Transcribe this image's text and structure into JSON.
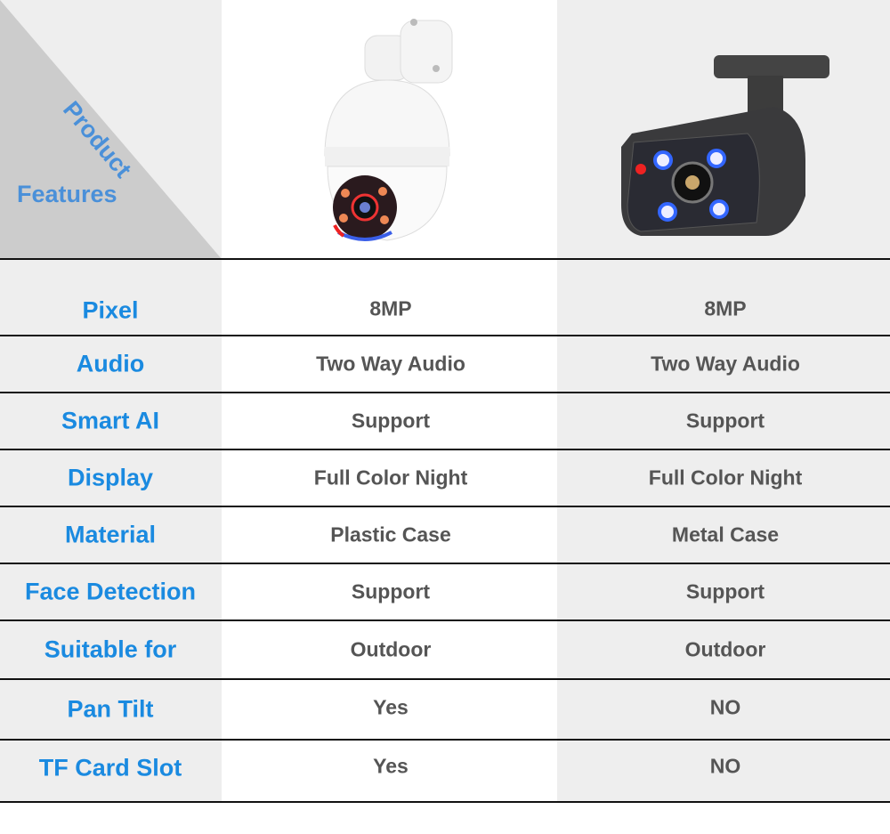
{
  "header": {
    "product_label": "Product",
    "features_label": "Features"
  },
  "products": [
    {
      "name": "pan-tilt-dome-camera",
      "color": "#ffffff"
    },
    {
      "name": "bullet-camera",
      "color": "#3a3a3c"
    }
  ],
  "colors": {
    "label_blue": "#1a8ae0",
    "header_blue": "#4a90d9",
    "value_gray": "#555555",
    "panel_gray": "#eeeeee"
  },
  "rows": [
    {
      "feature": "Pixel",
      "product1": "8MP",
      "product2": "8MP"
    },
    {
      "feature": "Audio",
      "product1": "Two Way Audio",
      "product2": "Two Way Audio"
    },
    {
      "feature": "Smart AI",
      "product1": "Support",
      "product2": "Support"
    },
    {
      "feature": "Display",
      "product1": "Full Color Night",
      "product2": "Full Color Night"
    },
    {
      "feature": "Material",
      "product1": "Plastic Case",
      "product2": "Metal Case"
    },
    {
      "feature": "Face Detection",
      "product1": "Support",
      "product2": "Support"
    },
    {
      "feature": "Suitable for",
      "product1": "Outdoor",
      "product2": "Outdoor"
    },
    {
      "feature": "Pan Tilt",
      "product1": "Yes",
      "product2": "NO"
    },
    {
      "feature": "TF Card Slot",
      "product1": "Yes",
      "product2": "NO"
    }
  ]
}
